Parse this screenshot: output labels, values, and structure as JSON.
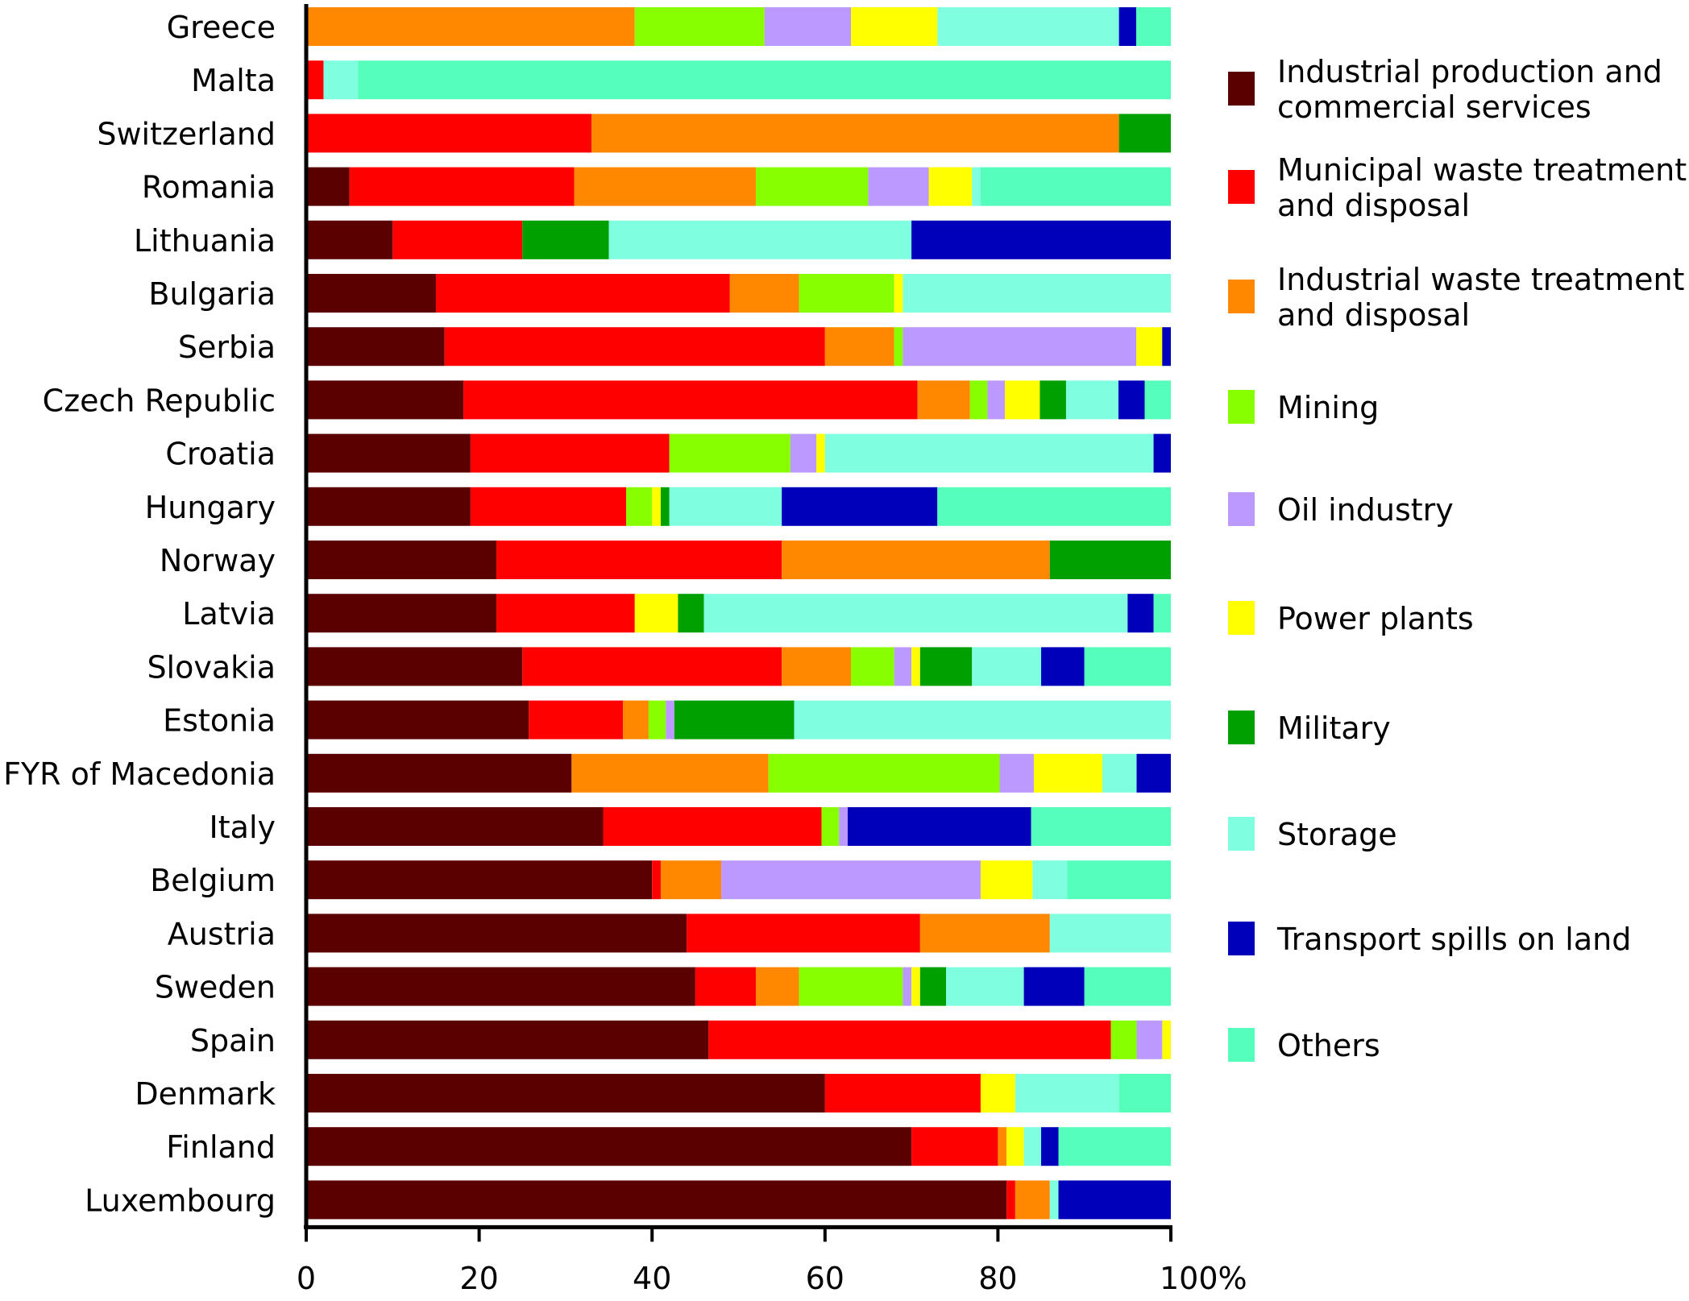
{
  "chart_data": {
    "type": "bar",
    "orientation": "horizontal",
    "stacked": true,
    "xlim": [
      0,
      100
    ],
    "x_ticks": [
      "0",
      "20",
      "40",
      "60",
      "80",
      "100%"
    ],
    "grid": false,
    "legend_position": "right",
    "categories": [
      "Greece",
      "Malta",
      "Switzerland",
      "Romania",
      "Lithuania",
      "Bulgaria",
      "Serbia",
      "Czech Republic",
      "Croatia",
      "Hungary",
      "Norway",
      "Latvia",
      "Slovakia",
      "Estonia",
      "FYR of Macedonia",
      "Italy",
      "Belgium",
      "Austria",
      "Sweden",
      "Spain",
      "Denmark",
      "Finland",
      "Luxembourg"
    ],
    "series": [
      {
        "name": "Industrial production and commercial services",
        "color": "#5a0000",
        "values": [
          0,
          0,
          0,
          5,
          10,
          15,
          16,
          18,
          19,
          19,
          22,
          22,
          25,
          26,
          31,
          34,
          40,
          44,
          45,
          47,
          60,
          70,
          81
        ]
      },
      {
        "name": "Municipal waste treatment and disposal",
        "color": "#ff0000",
        "values": [
          0,
          2,
          33,
          26,
          15,
          34,
          44,
          52,
          23,
          18,
          33,
          16,
          30,
          11,
          0,
          25,
          1,
          27,
          7,
          47,
          18,
          10,
          1
        ]
      },
      {
        "name": "Industrial waste treatment and disposal",
        "color": "#ff8800",
        "values": [
          38,
          0,
          61,
          21,
          0,
          8,
          8,
          6,
          0,
          0,
          31,
          0,
          8,
          3,
          23,
          0,
          7,
          15,
          5,
          0,
          0,
          1,
          4
        ]
      },
      {
        "name": "Mining",
        "color": "#88ff00",
        "values": [
          15,
          0,
          0,
          13,
          0,
          11,
          1,
          2,
          14,
          3,
          0,
          0,
          5,
          2,
          27,
          2,
          0,
          0,
          12,
          3,
          0,
          0,
          0
        ]
      },
      {
        "name": "Oil industry",
        "color": "#bb99ff",
        "values": [
          10,
          0,
          0,
          7,
          0,
          0,
          27,
          2,
          3,
          0,
          0,
          0,
          2,
          1,
          4,
          1,
          30,
          0,
          1,
          3,
          0,
          0,
          0
        ]
      },
      {
        "name": "Power plants",
        "color": "#ffff00",
        "values": [
          10,
          0,
          0,
          5,
          0,
          1,
          3,
          4,
          1,
          1,
          0,
          5,
          1,
          0,
          8,
          0,
          6,
          0,
          1,
          1,
          4,
          2,
          0
        ]
      },
      {
        "name": "Military",
        "color": "#00a000",
        "values": [
          0,
          0,
          6,
          0,
          10,
          0,
          0,
          3,
          0,
          1,
          14,
          3,
          6,
          14,
          0,
          0,
          0,
          0,
          3,
          0,
          0,
          0,
          0
        ]
      },
      {
        "name": "Storage",
        "color": "#7fffdf",
        "values": [
          21,
          4,
          0,
          1,
          35,
          31,
          0,
          6,
          38,
          13,
          0,
          49,
          8,
          44,
          4,
          0,
          4,
          14,
          9,
          0,
          12,
          2,
          1
        ]
      },
      {
        "name": "Transport spills on land",
        "color": "#0000bb",
        "values": [
          2,
          0,
          0,
          0,
          30,
          0,
          1,
          3,
          2,
          18,
          0,
          3,
          5,
          0,
          4,
          21,
          0,
          0,
          7,
          0,
          0,
          2,
          13
        ]
      },
      {
        "name": "Others",
        "color": "#55ffbb",
        "values": [
          4,
          94,
          0,
          22,
          0,
          0,
          0,
          3,
          0,
          27,
          0,
          2,
          10,
          0,
          0,
          16,
          12,
          0,
          10,
          0,
          6,
          13,
          0
        ]
      }
    ]
  }
}
